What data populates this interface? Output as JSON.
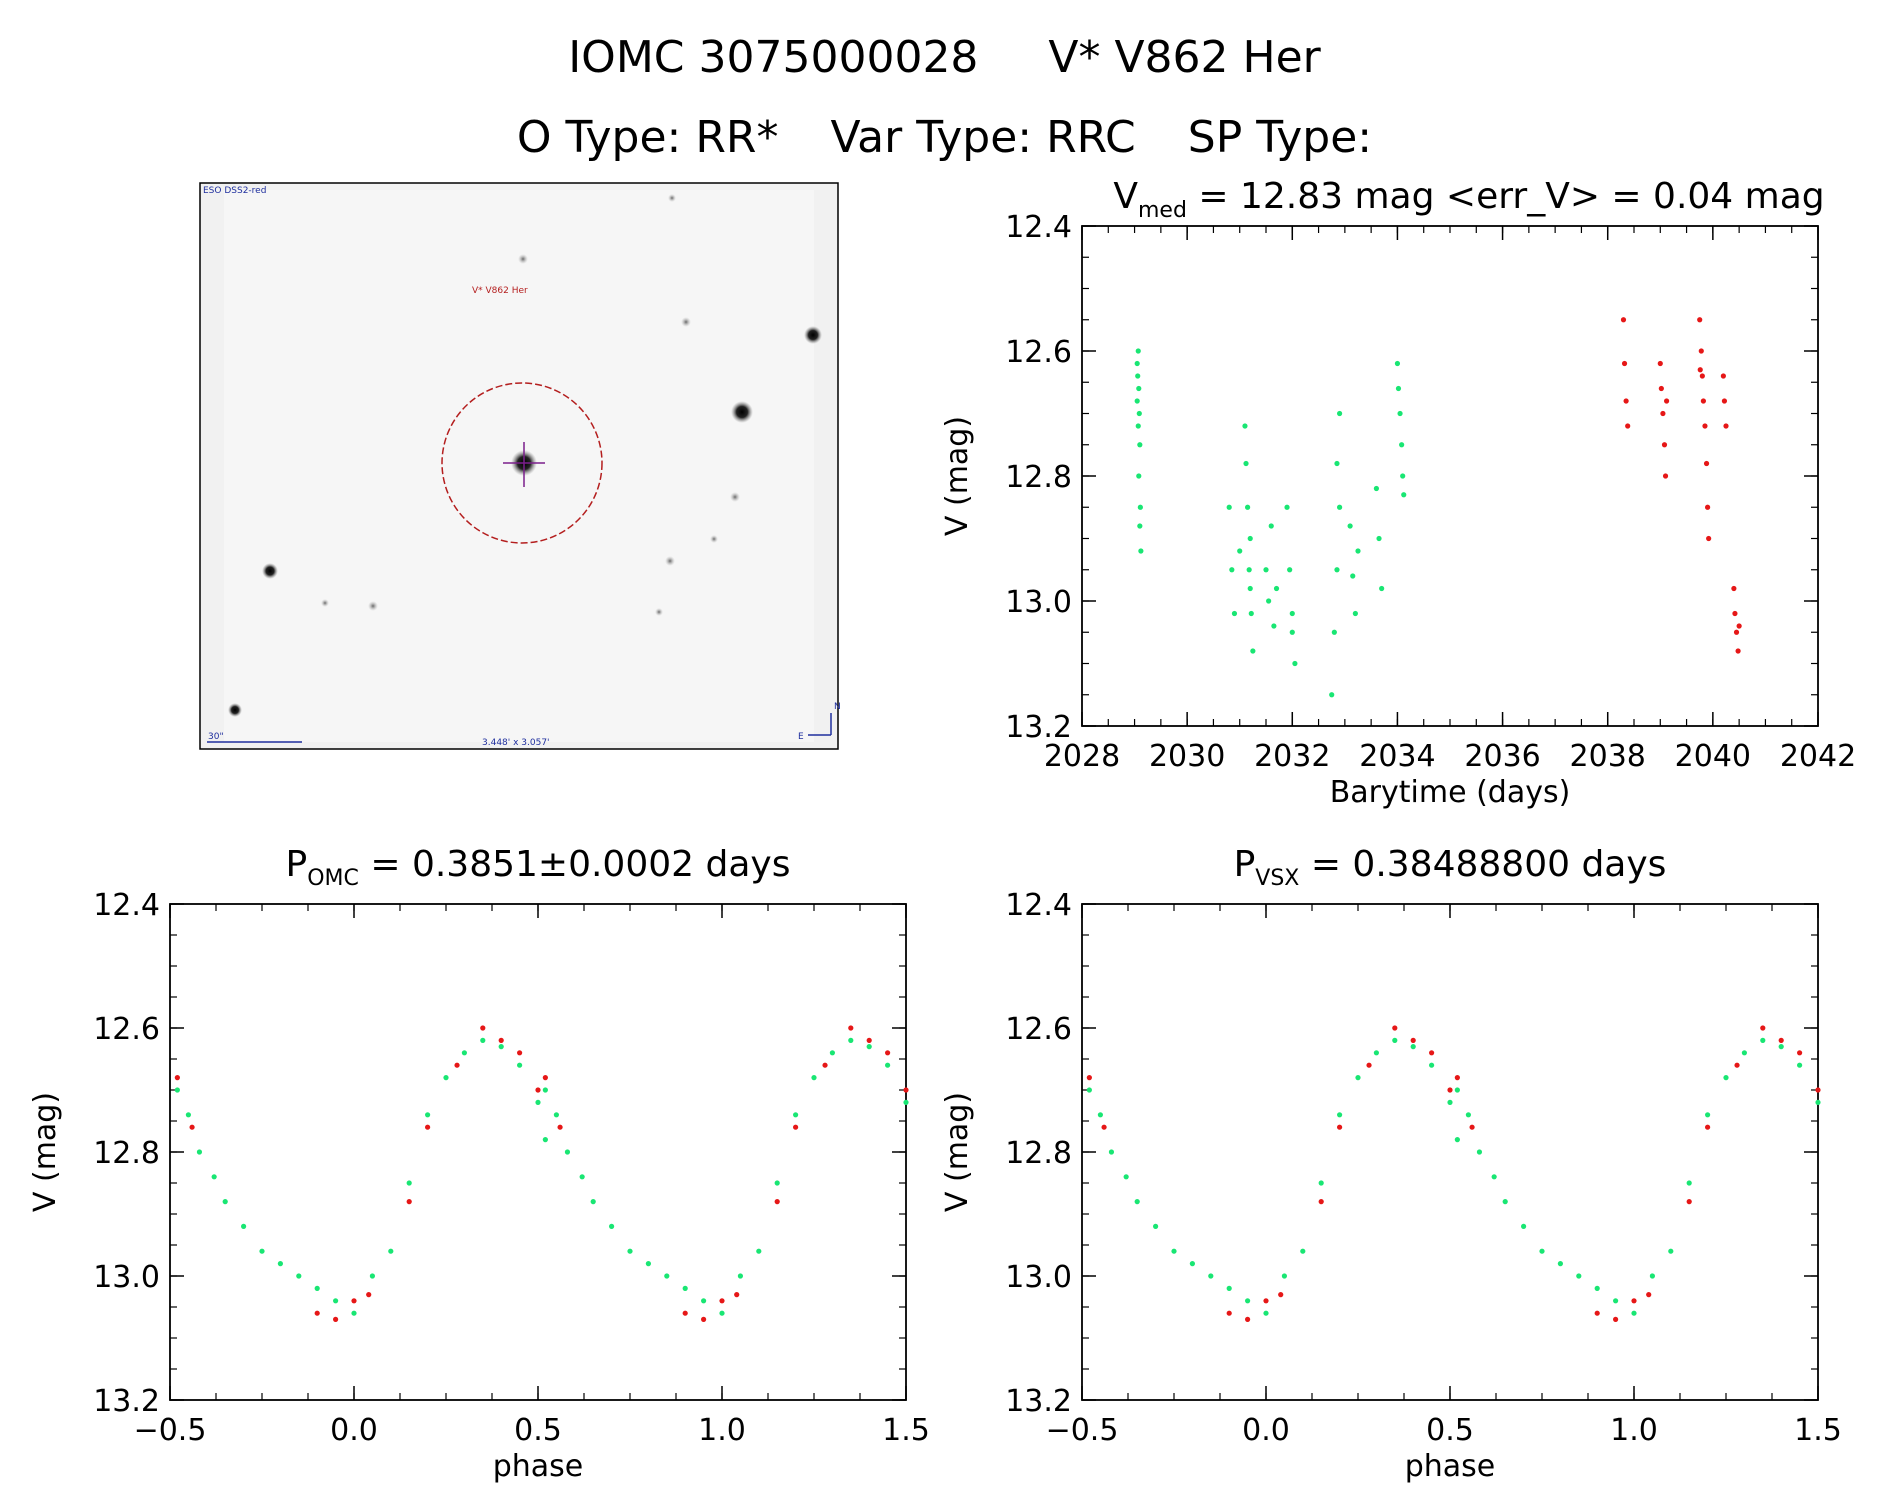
{
  "header": {
    "object_id": "IOMC 3075000028",
    "star_name": "V* V862 Her",
    "o_type_label": "O Type: RR*",
    "var_type_label": "Var Type: RRC",
    "sp_type_label": "SP Type:"
  },
  "finder": {
    "survey_label": "ESO DSS2-red",
    "target_label": "V* V862 Her",
    "scale_label": "30\"",
    "fov_label": "3.448' x 3.057'",
    "north_label": "N",
    "east_label": "E"
  },
  "colors": {
    "green": "#19e673",
    "red": "#e61717",
    "circle": "#b41e1e",
    "cross": "#7a1f8c",
    "finder_label": "#1f2f9e",
    "target_label_color": "#b41e1e"
  },
  "chart_data": [
    {
      "id": "lightcurve",
      "type": "scatter",
      "title_main": "V",
      "title_sub": "med",
      "title_rest": " = 12.83 mag <err_V> = 0.04 mag",
      "xlabel": "Barytime (days)",
      "ylabel": "V (mag)",
      "xlim": [
        2028,
        2042
      ],
      "ylim": [
        13.2,
        12.4
      ],
      "xticks": [
        2028,
        2030,
        2032,
        2034,
        2036,
        2038,
        2040,
        2042
      ],
      "yticks": [
        12.4,
        12.6,
        12.8,
        13.0,
        13.2
      ],
      "xtick_labels": [
        "2028",
        "2030",
        "2032",
        "2034",
        "2036",
        "2038",
        "2040",
        "2042"
      ],
      "ytick_labels": [
        "12.4",
        "12.6",
        "12.8",
        "13.0",
        "13.2"
      ],
      "series": [
        {
          "name": "green",
          "color": "#19e673",
          "points": [
            [
              2029.05,
              12.62
            ],
            [
              2029.06,
              12.64
            ],
            [
              2029.07,
              12.6
            ],
            [
              2029.08,
              12.66
            ],
            [
              2029.09,
              12.7
            ],
            [
              2029.1,
              12.75
            ],
            [
              2029.11,
              12.85
            ],
            [
              2029.12,
              12.92
            ],
            [
              2029.05,
              12.68
            ],
            [
              2029.07,
              12.72
            ],
            [
              2029.08,
              12.8
            ],
            [
              2029.1,
              12.88
            ],
            [
              2030.8,
              12.85
            ],
            [
              2030.85,
              12.95
            ],
            [
              2030.9,
              13.02
            ],
            [
              2031.0,
              12.92
            ],
            [
              2031.1,
              12.72
            ],
            [
              2031.12,
              12.78
            ],
            [
              2031.15,
              12.85
            ],
            [
              2031.18,
              12.95
            ],
            [
              2031.2,
              12.98
            ],
            [
              2031.22,
              13.02
            ],
            [
              2031.25,
              13.08
            ],
            [
              2031.2,
              12.9
            ],
            [
              2031.5,
              12.95
            ],
            [
              2031.55,
              13.0
            ],
            [
              2031.6,
              12.88
            ],
            [
              2031.65,
              13.04
            ],
            [
              2031.7,
              12.98
            ],
            [
              2031.9,
              12.85
            ],
            [
              2031.95,
              12.95
            ],
            [
              2032.0,
              13.02
            ],
            [
              2032.05,
              13.1
            ],
            [
              2032.0,
              13.05
            ],
            [
              2032.75,
              13.15
            ],
            [
              2032.8,
              13.05
            ],
            [
              2032.85,
              12.95
            ],
            [
              2032.9,
              12.85
            ],
            [
              2032.85,
              12.78
            ],
            [
              2032.9,
              12.7
            ],
            [
              2033.1,
              12.88
            ],
            [
              2033.15,
              12.96
            ],
            [
              2033.2,
              13.02
            ],
            [
              2033.25,
              12.92
            ],
            [
              2033.6,
              12.82
            ],
            [
              2033.65,
              12.9
            ],
            [
              2033.7,
              12.98
            ],
            [
              2034.0,
              12.62
            ],
            [
              2034.02,
              12.66
            ],
            [
              2034.05,
              12.7
            ],
            [
              2034.08,
              12.75
            ],
            [
              2034.1,
              12.8
            ],
            [
              2034.12,
              12.83
            ]
          ]
        },
        {
          "name": "red",
          "color": "#e61717",
          "points": [
            [
              2038.3,
              12.55
            ],
            [
              2038.32,
              12.62
            ],
            [
              2038.35,
              12.68
            ],
            [
              2038.38,
              12.72
            ],
            [
              2039.0,
              12.62
            ],
            [
              2039.02,
              12.66
            ],
            [
              2039.05,
              12.7
            ],
            [
              2039.08,
              12.75
            ],
            [
              2039.1,
              12.8
            ],
            [
              2039.12,
              12.68
            ],
            [
              2039.75,
              12.55
            ],
            [
              2039.78,
              12.6
            ],
            [
              2039.8,
              12.64
            ],
            [
              2039.82,
              12.68
            ],
            [
              2039.85,
              12.72
            ],
            [
              2039.88,
              12.78
            ],
            [
              2039.9,
              12.85
            ],
            [
              2039.92,
              12.9
            ],
            [
              2039.76,
              12.63
            ],
            [
              2040.2,
              12.64
            ],
            [
              2040.22,
              12.68
            ],
            [
              2040.25,
              12.72
            ],
            [
              2040.4,
              12.98
            ],
            [
              2040.42,
              13.02
            ],
            [
              2040.45,
              13.05
            ],
            [
              2040.48,
              13.08
            ],
            [
              2040.5,
              13.04
            ]
          ]
        }
      ]
    },
    {
      "id": "phase_omc",
      "type": "scatter",
      "title_main": "P",
      "title_sub": "OMC",
      "title_rest": " = 0.3851±0.0002 days",
      "xlabel": "phase",
      "ylabel": "V (mag)",
      "xlim": [
        -0.5,
        1.5
      ],
      "ylim": [
        13.2,
        12.4
      ],
      "xticks": [
        -0.5,
        0.0,
        0.5,
        1.0,
        1.5
      ],
      "yticks": [
        12.4,
        12.6,
        12.8,
        13.0,
        13.2
      ],
      "xtick_labels": [
        "−0.5",
        "0.0",
        "0.5",
        "1.0",
        "1.5"
      ],
      "ytick_labels": [
        "12.4",
        "12.6",
        "12.8",
        "13.0",
        "13.2"
      ],
      "series": [
        {
          "name": "green",
          "color": "#19e673",
          "points": [
            [
              -0.48,
              12.7
            ],
            [
              -0.45,
              12.74
            ],
            [
              -0.42,
              12.8
            ],
            [
              -0.38,
              12.84
            ],
            [
              -0.35,
              12.88
            ],
            [
              -0.3,
              12.92
            ],
            [
              -0.25,
              12.96
            ],
            [
              -0.2,
              12.98
            ],
            [
              -0.15,
              13.0
            ],
            [
              -0.1,
              13.02
            ],
            [
              -0.05,
              13.04
            ],
            [
              0.0,
              13.06
            ],
            [
              0.05,
              13.0
            ],
            [
              0.1,
              12.96
            ],
            [
              0.15,
              12.85
            ],
            [
              0.2,
              12.74
            ],
            [
              0.25,
              12.68
            ],
            [
              0.3,
              12.64
            ],
            [
              0.35,
              12.62
            ],
            [
              0.4,
              12.63
            ],
            [
              0.45,
              12.66
            ],
            [
              0.5,
              12.72
            ],
            [
              0.52,
              12.78
            ]
          ]
        },
        {
          "name": "red",
          "color": "#e61717",
          "points": [
            [
              -0.48,
              12.68
            ],
            [
              -0.44,
              12.76
            ],
            [
              -0.1,
              13.06
            ],
            [
              -0.05,
              13.07
            ],
            [
              0.0,
              13.04
            ],
            [
              0.04,
              13.03
            ],
            [
              0.15,
              12.88
            ],
            [
              0.2,
              12.76
            ],
            [
              0.28,
              12.66
            ],
            [
              0.35,
              12.6
            ],
            [
              0.4,
              12.62
            ],
            [
              0.45,
              12.64
            ],
            [
              0.5,
              12.7
            ]
          ]
        }
      ]
    },
    {
      "id": "phase_vsx",
      "type": "scatter",
      "title_main": "P",
      "title_sub": "VSX",
      "title_rest": " = 0.38488800 days",
      "xlabel": "phase",
      "ylabel": "V (mag)",
      "xlim": [
        -0.5,
        1.5
      ],
      "ylim": [
        13.2,
        12.4
      ],
      "xticks": [
        -0.5,
        0.0,
        0.5,
        1.0,
        1.5
      ],
      "yticks": [
        12.4,
        12.6,
        12.8,
        13.0,
        13.2
      ],
      "xtick_labels": [
        "−0.5",
        "0.0",
        "0.5",
        "1.0",
        "1.5"
      ],
      "ytick_labels": [
        "12.4",
        "12.6",
        "12.8",
        "13.0",
        "13.2"
      ],
      "series": [
        {
          "name": "green",
          "color": "#19e673",
          "points": [
            [
              -0.48,
              12.7
            ],
            [
              -0.45,
              12.74
            ],
            [
              -0.42,
              12.8
            ],
            [
              -0.38,
              12.84
            ],
            [
              -0.35,
              12.88
            ],
            [
              -0.3,
              12.92
            ],
            [
              -0.25,
              12.96
            ],
            [
              -0.2,
              12.98
            ],
            [
              -0.15,
              13.0
            ],
            [
              -0.1,
              13.02
            ],
            [
              -0.05,
              13.04
            ],
            [
              0.0,
              13.06
            ],
            [
              0.05,
              13.0
            ],
            [
              0.1,
              12.96
            ],
            [
              0.15,
              12.85
            ],
            [
              0.2,
              12.74
            ],
            [
              0.25,
              12.68
            ],
            [
              0.3,
              12.64
            ],
            [
              0.35,
              12.62
            ],
            [
              0.4,
              12.63
            ],
            [
              0.45,
              12.66
            ],
            [
              0.5,
              12.72
            ],
            [
              0.52,
              12.78
            ]
          ]
        },
        {
          "name": "red",
          "color": "#e61717",
          "points": [
            [
              -0.48,
              12.68
            ],
            [
              -0.44,
              12.76
            ],
            [
              -0.1,
              13.06
            ],
            [
              -0.05,
              13.07
            ],
            [
              0.0,
              13.04
            ],
            [
              0.04,
              13.03
            ],
            [
              0.15,
              12.88
            ],
            [
              0.2,
              12.76
            ],
            [
              0.28,
              12.66
            ],
            [
              0.35,
              12.6
            ],
            [
              0.4,
              12.62
            ],
            [
              0.45,
              12.64
            ],
            [
              0.5,
              12.7
            ]
          ]
        }
      ]
    }
  ]
}
